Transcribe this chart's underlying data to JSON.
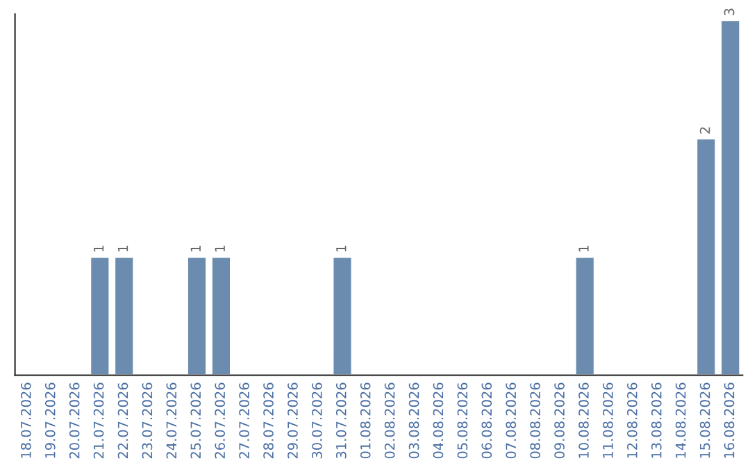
{
  "chart_data": {
    "type": "bar",
    "categories": [
      "18.07.2026",
      "19.07.2026",
      "20.07.2026",
      "21.07.2026",
      "22.07.2026",
      "23.07.2026",
      "24.07.2026",
      "25.07.2026",
      "26.07.2026",
      "27.07.2026",
      "28.07.2026",
      "29.07.2026",
      "30.07.2026",
      "31.07.2026",
      "01.08.2026",
      "02.08.2026",
      "03.08.2026",
      "04.08.2026",
      "05.08.2026",
      "06.08.2026",
      "07.08.2026",
      "08.08.2026",
      "09.08.2026",
      "10.08.2026",
      "11.08.2026",
      "12.08.2026",
      "13.08.2026",
      "14.08.2026",
      "15.08.2026",
      "16.08.2026"
    ],
    "values": [
      null,
      null,
      null,
      1,
      1,
      null,
      null,
      1,
      1,
      null,
      null,
      null,
      null,
      1,
      null,
      null,
      null,
      null,
      null,
      null,
      null,
      null,
      null,
      1,
      null,
      null,
      null,
      null,
      2,
      3
    ],
    "value_labels": [
      null,
      null,
      null,
      "1",
      "1",
      null,
      null,
      "1",
      "1",
      null,
      null,
      null,
      null,
      "1",
      null,
      null,
      null,
      null,
      null,
      null,
      null,
      null,
      null,
      "1",
      null,
      null,
      null,
      null,
      "2",
      "3"
    ],
    "color": "#6b8cae",
    "ylim": [
      0,
      3.05
    ],
    "tick_labels": "x",
    "grid": false
  }
}
